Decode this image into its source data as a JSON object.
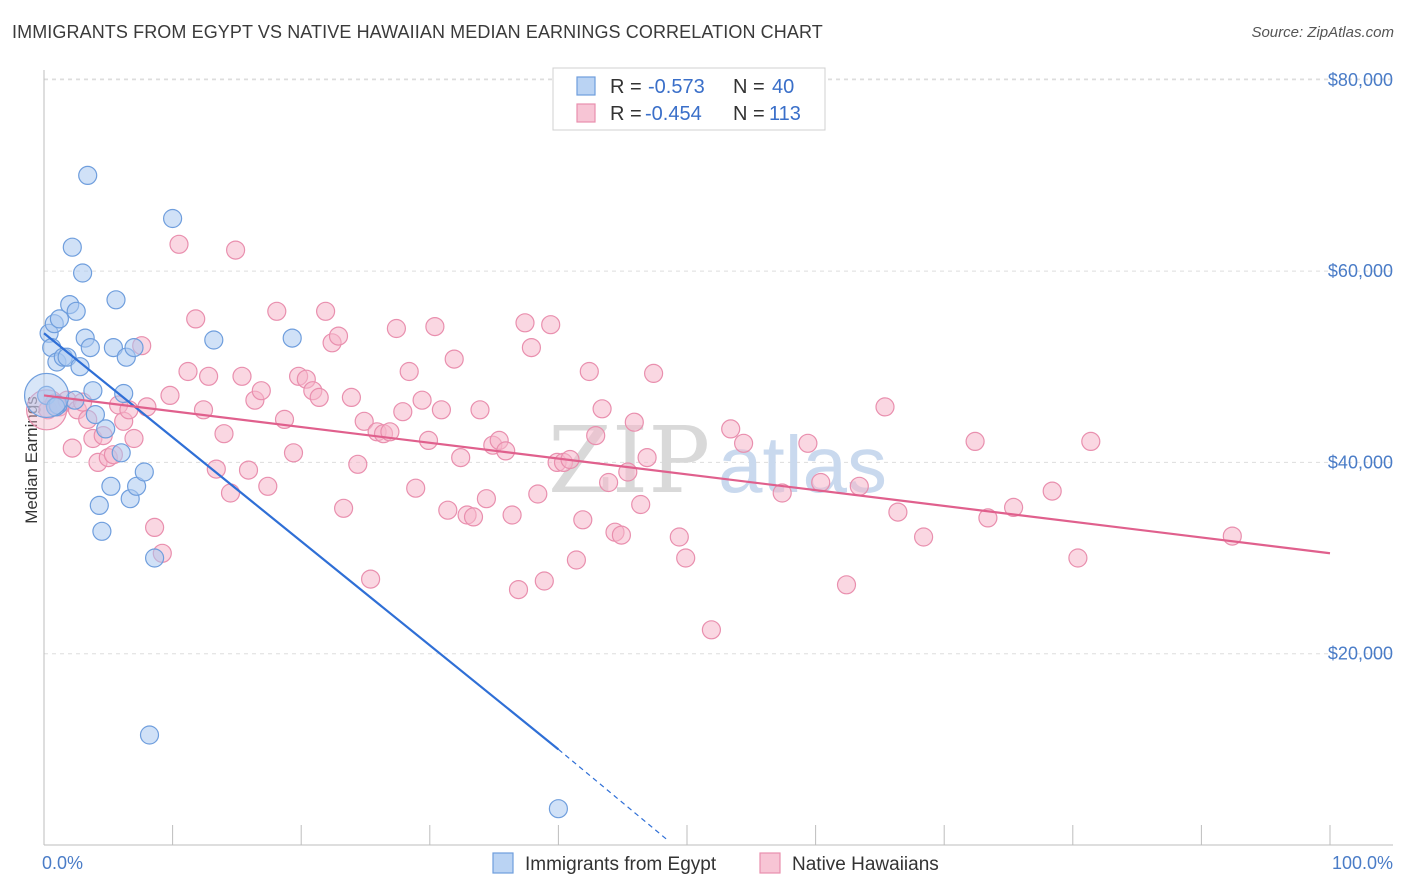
{
  "header": {
    "title": "IMMIGRANTS FROM EGYPT VS NATIVE HAWAIIAN MEDIAN EARNINGS CORRELATION CHART",
    "source": "Source: ZipAtlas.com"
  },
  "watermark": {
    "zip": "ZIP",
    "atlas": "atlas"
  },
  "colors": {
    "blue_fill": "#a9c8f0",
    "blue_stroke": "#6f9edd",
    "blue_line": "#2f6fd6",
    "pink_fill": "#f5b7cb",
    "pink_stroke": "#e98fae",
    "pink_line": "#e0608d",
    "grid": "#dddddd",
    "axis_text": "#4a7cc7"
  },
  "legend": {
    "r_label": "R = ",
    "n_label": "N = ",
    "rows": [
      {
        "r": "-0.573",
        "n": "40"
      },
      {
        "r": "-0.454",
        "n": "113"
      }
    ]
  },
  "chart_data": {
    "type": "scatter",
    "title": "IMMIGRANTS FROM EGYPT VS NATIVE HAWAIIAN MEDIAN EARNINGS CORRELATION CHART",
    "xlabel": "",
    "ylabel": "Median Earnings",
    "xlim": [
      0,
      100
    ],
    "ylim": [
      0,
      85000
    ],
    "x_tick_labels": {
      "left": "0.0%",
      "right": "100.0%"
    },
    "y_ticks": [
      {
        "value": 20000,
        "label": "$20,000"
      },
      {
        "value": 40000,
        "label": "$40,000"
      },
      {
        "value": 60000,
        "label": "$60,000"
      },
      {
        "value": 80000,
        "label": "$80,000"
      }
    ],
    "grid": true,
    "legend_placement": "top-center",
    "series": [
      {
        "name": "Immigrants from Egypt",
        "color": "#a9c8f0",
        "trend": {
          "x0": 0,
          "y0": 53500,
          "x1": 40,
          "y1": 10000,
          "dash_to_x": 48.5,
          "dash_to_y": 500
        },
        "points": [
          [
            0.2,
            47000
          ],
          [
            0.4,
            53500
          ],
          [
            0.6,
            52000
          ],
          [
            0.8,
            54500
          ],
          [
            1.0,
            50500
          ],
          [
            1.2,
            55000
          ],
          [
            1.5,
            51000
          ],
          [
            1.8,
            51000
          ],
          [
            2.0,
            56500
          ],
          [
            2.2,
            62500
          ],
          [
            2.5,
            55800
          ],
          [
            2.8,
            50000
          ],
          [
            3.0,
            59800
          ],
          [
            3.2,
            53000
          ],
          [
            3.4,
            70000
          ],
          [
            3.6,
            52000
          ],
          [
            3.8,
            47500
          ],
          [
            4.0,
            45000
          ],
          [
            4.3,
            35500
          ],
          [
            4.5,
            32800
          ],
          [
            4.8,
            43500
          ],
          [
            5.2,
            37500
          ],
          [
            5.4,
            52000
          ],
          [
            5.6,
            57000
          ],
          [
            6.0,
            41000
          ],
          [
            6.2,
            47200
          ],
          [
            6.4,
            51000
          ],
          [
            6.7,
            36200
          ],
          [
            7.0,
            52000
          ],
          [
            7.2,
            37500
          ],
          [
            7.8,
            39000
          ],
          [
            8.2,
            11500
          ],
          [
            8.6,
            30000
          ],
          [
            10.0,
            65500
          ],
          [
            13.2,
            52800
          ],
          [
            19.3,
            53000
          ],
          [
            40.0,
            3800
          ],
          [
            1.1,
            46000
          ],
          [
            2.4,
            46500
          ],
          [
            0.9,
            45800
          ]
        ]
      },
      {
        "name": "Native Hawaiians",
        "color": "#f5b7cb",
        "trend": {
          "x0": 0,
          "y0": 47000,
          "x1": 100,
          "y1": 30500
        },
        "points": [
          [
            0.3,
            45500
          ],
          [
            0.8,
            46200
          ],
          [
            1.2,
            45800
          ],
          [
            1.8,
            46500
          ],
          [
            2.2,
            41500
          ],
          [
            2.6,
            45500
          ],
          [
            3.0,
            46300
          ],
          [
            3.4,
            44500
          ],
          [
            3.8,
            42500
          ],
          [
            4.2,
            40000
          ],
          [
            4.6,
            42800
          ],
          [
            5.0,
            40500
          ],
          [
            5.4,
            40800
          ],
          [
            5.8,
            46000
          ],
          [
            6.2,
            44300
          ],
          [
            6.6,
            45500
          ],
          [
            7.0,
            42500
          ],
          [
            7.6,
            52200
          ],
          [
            8.0,
            45800
          ],
          [
            8.6,
            33200
          ],
          [
            9.2,
            30500
          ],
          [
            9.8,
            47000
          ],
          [
            10.5,
            62800
          ],
          [
            11.2,
            49500
          ],
          [
            11.8,
            55000
          ],
          [
            12.4,
            45500
          ],
          [
            12.8,
            49000
          ],
          [
            13.4,
            39300
          ],
          [
            14.0,
            43000
          ],
          [
            14.5,
            36800
          ],
          [
            14.9,
            62200
          ],
          [
            15.4,
            49000
          ],
          [
            15.9,
            39200
          ],
          [
            16.4,
            46500
          ],
          [
            16.9,
            47500
          ],
          [
            17.4,
            37500
          ],
          [
            18.1,
            55800
          ],
          [
            18.7,
            44500
          ],
          [
            19.4,
            41000
          ],
          [
            19.8,
            49000
          ],
          [
            20.4,
            48700
          ],
          [
            20.9,
            47500
          ],
          [
            21.4,
            46800
          ],
          [
            21.9,
            55800
          ],
          [
            22.4,
            52500
          ],
          [
            22.9,
            53200
          ],
          [
            23.3,
            35200
          ],
          [
            23.9,
            46800
          ],
          [
            24.4,
            39800
          ],
          [
            24.9,
            44300
          ],
          [
            25.4,
            27800
          ],
          [
            25.9,
            43200
          ],
          [
            26.4,
            43000
          ],
          [
            26.9,
            43200
          ],
          [
            27.4,
            54000
          ],
          [
            27.9,
            45300
          ],
          [
            28.4,
            49500
          ],
          [
            28.9,
            37300
          ],
          [
            29.4,
            46500
          ],
          [
            29.9,
            42300
          ],
          [
            30.4,
            54200
          ],
          [
            30.9,
            45500
          ],
          [
            31.4,
            35000
          ],
          [
            31.9,
            50800
          ],
          [
            32.4,
            40500
          ],
          [
            32.9,
            34500
          ],
          [
            33.4,
            34300
          ],
          [
            33.9,
            45500
          ],
          [
            34.4,
            36200
          ],
          [
            34.9,
            41800
          ],
          [
            35.4,
            42300
          ],
          [
            35.9,
            41200
          ],
          [
            36.4,
            34500
          ],
          [
            36.9,
            26700
          ],
          [
            37.4,
            54600
          ],
          [
            37.9,
            52000
          ],
          [
            38.4,
            36700
          ],
          [
            38.9,
            27600
          ],
          [
            39.4,
            54400
          ],
          [
            39.9,
            40000
          ],
          [
            40.4,
            40000
          ],
          [
            40.9,
            40300
          ],
          [
            41.4,
            29800
          ],
          [
            41.9,
            34000
          ],
          [
            42.4,
            49500
          ],
          [
            42.9,
            42800
          ],
          [
            43.4,
            45600
          ],
          [
            43.9,
            37900
          ],
          [
            44.4,
            32700
          ],
          [
            44.9,
            32400
          ],
          [
            45.4,
            39000
          ],
          [
            45.9,
            44200
          ],
          [
            46.4,
            35600
          ],
          [
            46.9,
            40500
          ],
          [
            47.4,
            49300
          ],
          [
            49.4,
            32200
          ],
          [
            49.9,
            30000
          ],
          [
            51.9,
            22500
          ],
          [
            53.4,
            43500
          ],
          [
            54.4,
            42000
          ],
          [
            57.4,
            36800
          ],
          [
            59.4,
            42000
          ],
          [
            60.4,
            37900
          ],
          [
            62.4,
            27200
          ],
          [
            63.4,
            37500
          ],
          [
            65.4,
            45800
          ],
          [
            66.4,
            34800
          ],
          [
            68.4,
            32200
          ],
          [
            72.4,
            42200
          ],
          [
            73.4,
            34200
          ],
          [
            75.4,
            35300
          ],
          [
            78.4,
            37000
          ],
          [
            80.4,
            30000
          ],
          [
            81.4,
            42200
          ],
          [
            92.4,
            32300
          ]
        ]
      }
    ]
  },
  "bottom_legend": [
    {
      "label": "Immigrants from Egypt"
    },
    {
      "label": "Native Hawaiians"
    }
  ]
}
